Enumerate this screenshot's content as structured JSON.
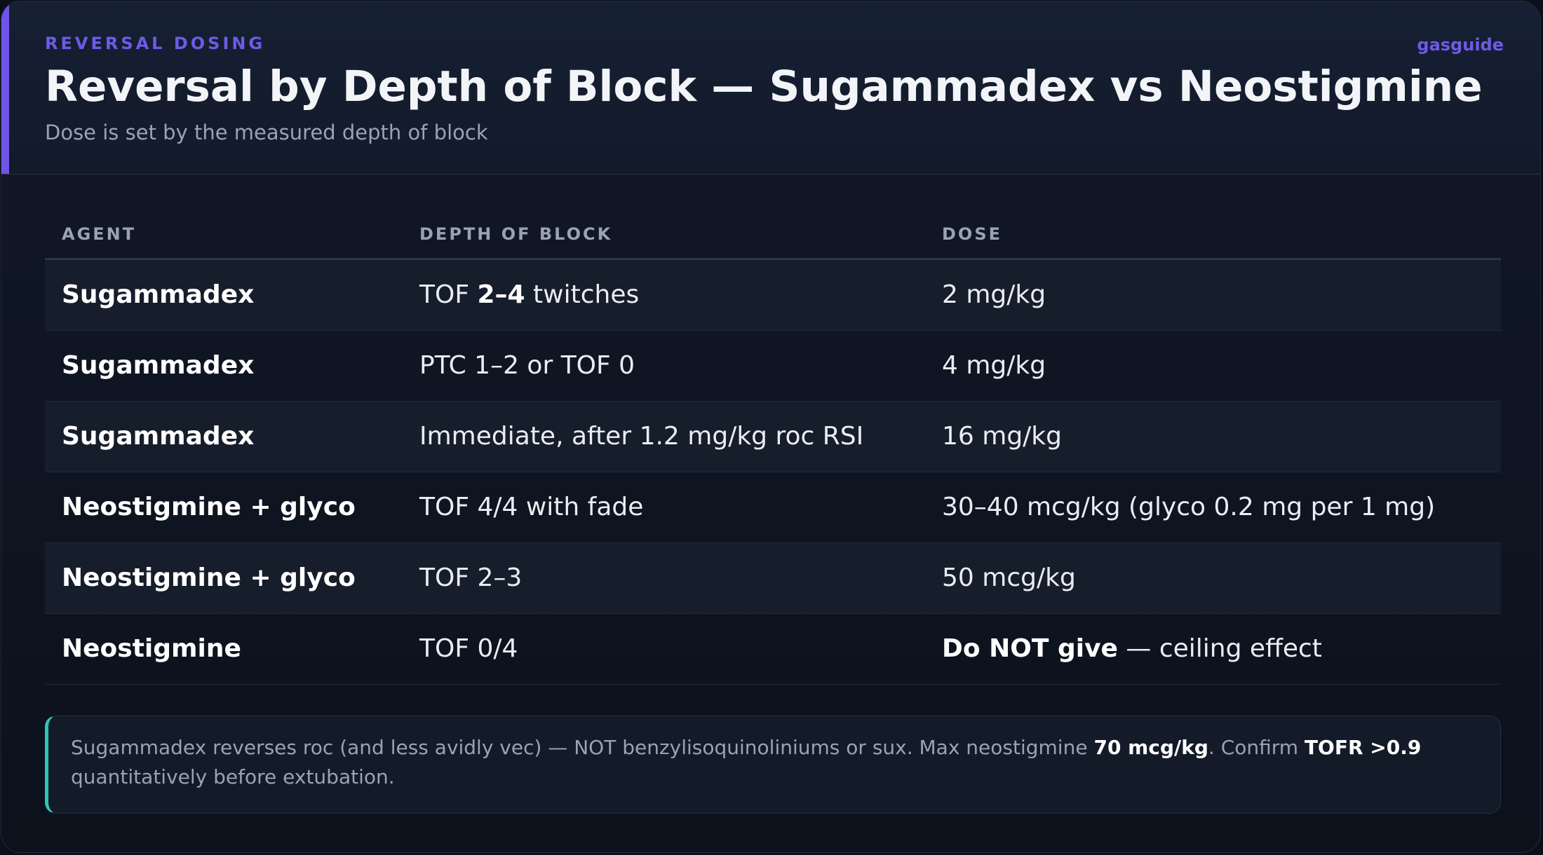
{
  "header": {
    "kicker": "REVERSAL DOSING",
    "brand": "gasguide",
    "title": "Reversal by Depth of Block — Sugammadex vs Neostigmine",
    "subtitle": "Dose is set by the measured depth of block",
    "accent_color": "#6f54e8"
  },
  "table": {
    "columns": [
      "AGENT",
      "DEPTH OF BLOCK",
      "DOSE"
    ],
    "rows": [
      {
        "agent": "Sugammadex",
        "depth_pre": "TOF ",
        "depth_bold": "2–4",
        "depth_post": " twitches",
        "dose_bold": "",
        "dose": "2 mg/kg"
      },
      {
        "agent": "Sugammadex",
        "depth_pre": "PTC 1–2 or TOF 0",
        "depth_bold": "",
        "depth_post": "",
        "dose_bold": "",
        "dose": "4 mg/kg"
      },
      {
        "agent": "Sugammadex",
        "depth_pre": "Immediate, after 1.2 mg/kg roc RSI",
        "depth_bold": "",
        "depth_post": "",
        "dose_bold": "",
        "dose": "16 mg/kg"
      },
      {
        "agent": "Neostigmine + glyco",
        "depth_pre": "TOF 4/4 with fade",
        "depth_bold": "",
        "depth_post": "",
        "dose_bold": "",
        "dose": "30–40 mcg/kg (glyco 0.2 mg per 1 mg)"
      },
      {
        "agent": "Neostigmine + glyco",
        "depth_pre": "TOF 2–3",
        "depth_bold": "",
        "depth_post": "",
        "dose_bold": "",
        "dose": "50 mcg/kg"
      },
      {
        "agent": "Neostigmine",
        "depth_pre": "TOF 0/4",
        "depth_bold": "",
        "depth_post": "",
        "dose_bold": "Do NOT give",
        "dose": " — ceiling effect"
      }
    ]
  },
  "note": {
    "part1": "Sugammadex reverses roc (and less avidly vec) — NOT benzylisoquinoliniums or sux. Max neostigmine ",
    "bold1": "70 mcg/kg",
    "part2": ". Confirm ",
    "bold2": "TOFR >0.9",
    "part3": " quantitatively before extubation.",
    "accent_color": "#2ec4b6"
  }
}
